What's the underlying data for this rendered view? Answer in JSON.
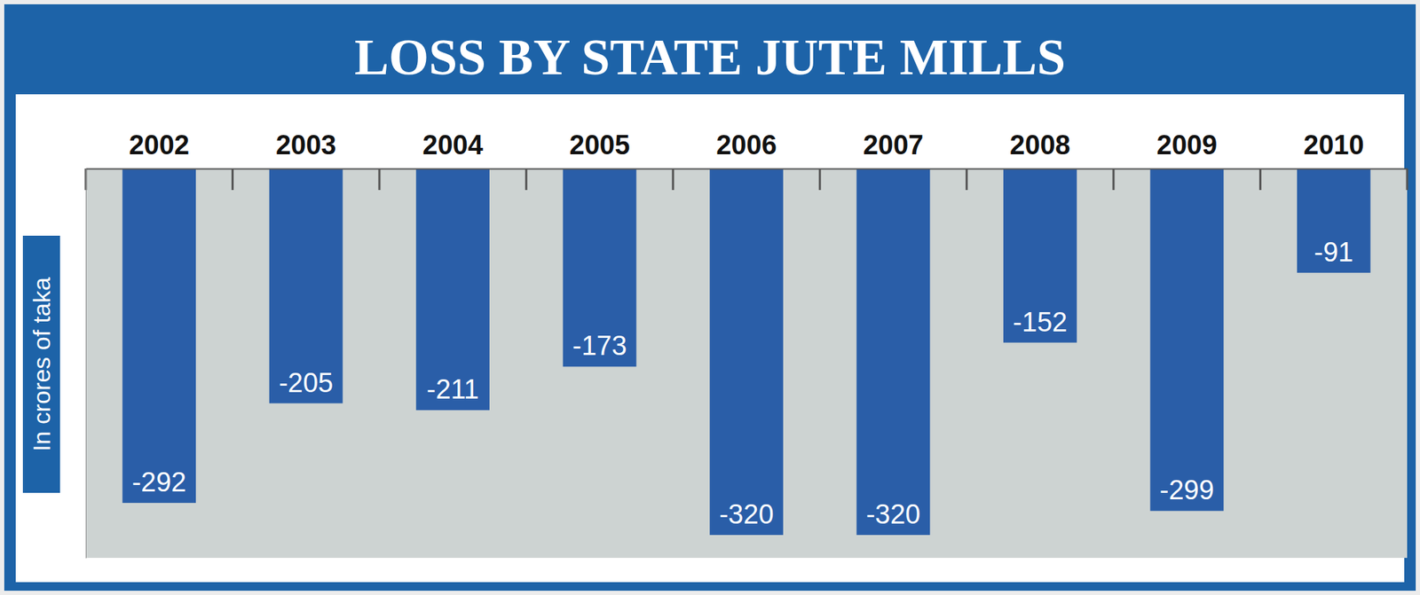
{
  "chart_data": {
    "type": "bar",
    "title": "LOSS BY STATE JUTE MILLS",
    "y_label": "In crores of taka",
    "categories": [
      "2002",
      "2003",
      "2004",
      "2005",
      "2006",
      "2007",
      "2008",
      "2009",
      "2010"
    ],
    "values": [
      -292,
      -205,
      -211,
      -173,
      -320,
      -320,
      -152,
      -299,
      -91
    ],
    "color": "#2a5ea8",
    "ylim": [
      -340,
      0
    ],
    "data_labels": true,
    "tick_labels": "x"
  }
}
